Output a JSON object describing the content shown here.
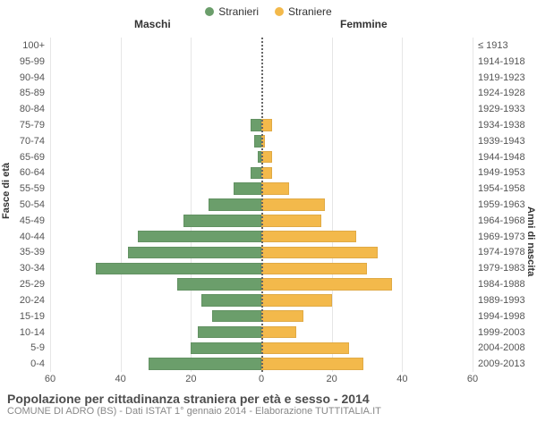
{
  "legend": {
    "male": {
      "label": "Stranieri",
      "color": "#6b9e6b"
    },
    "female": {
      "label": "Straniere",
      "color": "#f3b94b"
    }
  },
  "headers": {
    "male": "Maschi",
    "female": "Femmine"
  },
  "axis_titles": {
    "left": "Fasce di età",
    "right": "Anni di nascita"
  },
  "chart": {
    "type": "population-pyramid",
    "xlim": 60,
    "xticks": [
      60,
      40,
      20,
      0,
      20,
      40,
      60
    ],
    "grid_color": "#e6e6e6",
    "zero_color": "#666666",
    "background_color": "#ffffff",
    "bar_male_color": "#6b9e6b",
    "bar_female_color": "#f3b94b",
    "label_fontsize": 11,
    "rows": [
      {
        "age": "100+",
        "birth": "≤ 1913",
        "m": 0,
        "f": 0
      },
      {
        "age": "95-99",
        "birth": "1914-1918",
        "m": 0,
        "f": 0
      },
      {
        "age": "90-94",
        "birth": "1919-1923",
        "m": 0,
        "f": 0
      },
      {
        "age": "85-89",
        "birth": "1924-1928",
        "m": 0,
        "f": 0
      },
      {
        "age": "80-84",
        "birth": "1929-1933",
        "m": 0,
        "f": 0
      },
      {
        "age": "75-79",
        "birth": "1934-1938",
        "m": 3,
        "f": 3
      },
      {
        "age": "70-74",
        "birth": "1939-1943",
        "m": 2,
        "f": 1
      },
      {
        "age": "65-69",
        "birth": "1944-1948",
        "m": 1,
        "f": 3
      },
      {
        "age": "60-64",
        "birth": "1949-1953",
        "m": 3,
        "f": 3
      },
      {
        "age": "55-59",
        "birth": "1954-1958",
        "m": 8,
        "f": 8
      },
      {
        "age": "50-54",
        "birth": "1959-1963",
        "m": 15,
        "f": 18
      },
      {
        "age": "45-49",
        "birth": "1964-1968",
        "m": 22,
        "f": 17
      },
      {
        "age": "40-44",
        "birth": "1969-1973",
        "m": 35,
        "f": 27
      },
      {
        "age": "35-39",
        "birth": "1974-1978",
        "m": 38,
        "f": 33
      },
      {
        "age": "30-34",
        "birth": "1979-1983",
        "m": 47,
        "f": 30
      },
      {
        "age": "25-29",
        "birth": "1984-1988",
        "m": 24,
        "f": 37
      },
      {
        "age": "20-24",
        "birth": "1989-1993",
        "m": 17,
        "f": 20
      },
      {
        "age": "15-19",
        "birth": "1994-1998",
        "m": 14,
        "f": 12
      },
      {
        "age": "10-14",
        "birth": "1999-2003",
        "m": 18,
        "f": 10
      },
      {
        "age": "5-9",
        "birth": "2004-2008",
        "m": 20,
        "f": 25
      },
      {
        "age": "0-4",
        "birth": "2009-2013",
        "m": 32,
        "f": 29
      }
    ]
  },
  "footer": {
    "title": "Popolazione per cittadinanza straniera per età e sesso - 2014",
    "subtitle": "COMUNE DI ADRO (BS) - Dati ISTAT 1° gennaio 2014 - Elaborazione TUTTITALIA.IT"
  }
}
